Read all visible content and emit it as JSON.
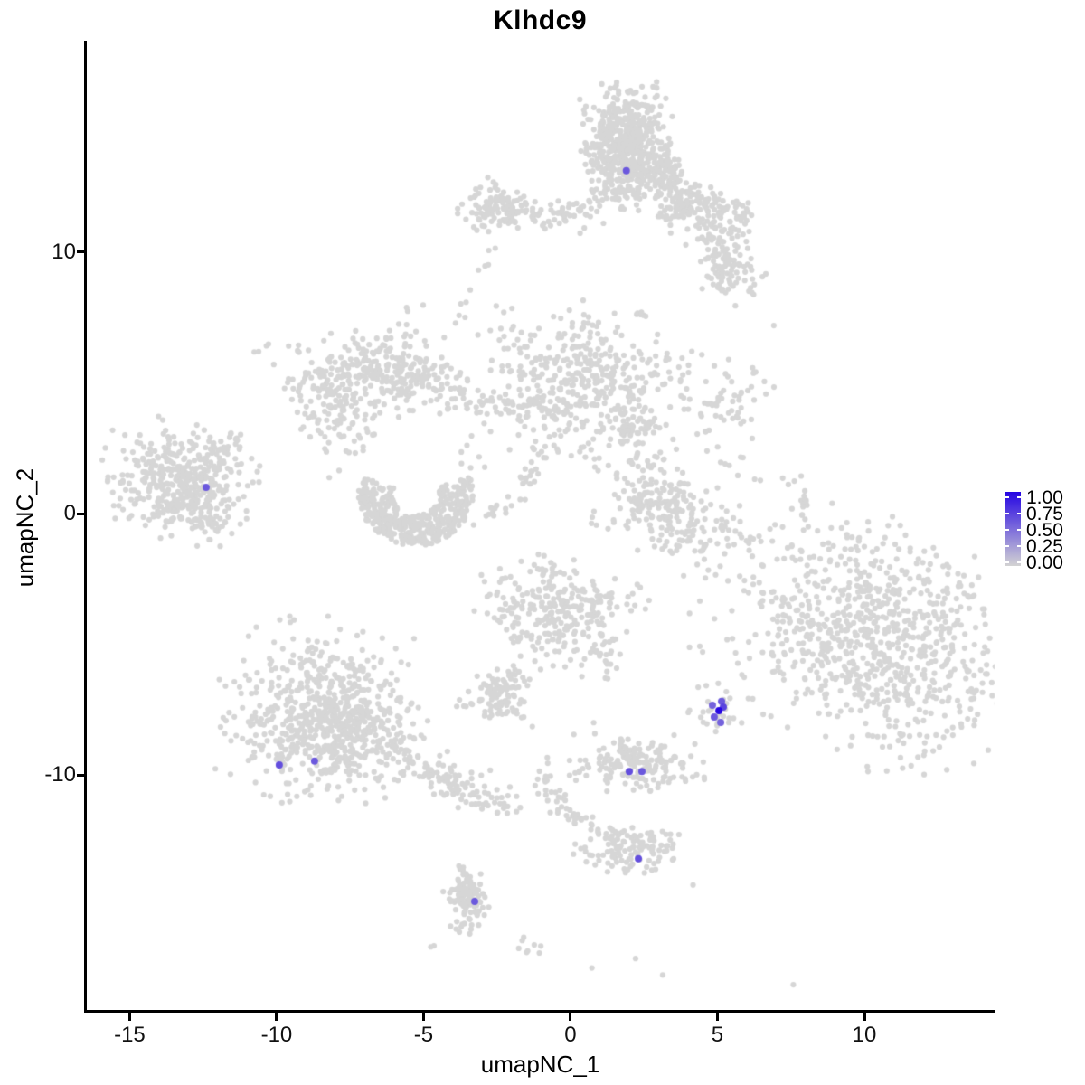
{
  "title": "Klhdc9",
  "chart_data": {
    "type": "scatter",
    "subtype": "umap-feature-plot",
    "title": "Klhdc9",
    "xlabel": "umapNC_1",
    "ylabel": "umapNC_2",
    "xlim": [
      -16.49,
      14.43
    ],
    "ylim": [
      -19.0,
      18.07
    ],
    "x_ticks": [
      -15,
      -10,
      -5,
      0,
      5,
      10
    ],
    "x_tick_labels": [
      "-15",
      "-10",
      "-5",
      "0",
      "5",
      "10"
    ],
    "y_ticks": [
      10,
      0,
      -10
    ],
    "y_tick_labels": [
      "10",
      "0",
      "-10"
    ],
    "grid": false,
    "base_point_color": "#D6D6D6",
    "base_point_radius": 3.1,
    "expressing_point_radius": 4.0,
    "legend": {
      "position": "right",
      "values": [
        1.0,
        0.75,
        0.5,
        0.25,
        0.0
      ],
      "labels": [
        "1.00",
        "0.75",
        "0.50",
        "0.25",
        "0.00"
      ],
      "color_low": "#D3D3D3",
      "color_high": "#2606E3"
    },
    "clusters": [
      {
        "shape": "gauss",
        "cx": 1.88,
        "cy": 14.02,
        "sx": 0.68,
        "sy": 1.04,
        "rot": 0,
        "n": 620
      },
      {
        "shape": "gauss",
        "cx": 3.2,
        "cy": 13.06,
        "sx": 0.35,
        "sy": 0.45,
        "rot": 0,
        "n": 70
      },
      {
        "shape": "gauss",
        "cx": 3.97,
        "cy": 11.74,
        "sx": 0.5,
        "sy": 0.45,
        "rot": 0,
        "n": 90
      },
      {
        "shape": "gauss",
        "cx": 5.2,
        "cy": 11.09,
        "sx": 0.55,
        "sy": 0.5,
        "rot": 0,
        "n": 90
      },
      {
        "shape": "gauss",
        "cx": 5.38,
        "cy": 9.26,
        "sx": 0.6,
        "sy": 0.5,
        "rot": -20,
        "n": 80
      },
      {
        "shape": "gauss",
        "cx": -2.43,
        "cy": 11.61,
        "sx": 0.6,
        "sy": 0.38,
        "rot": 0,
        "n": 110
      },
      {
        "shape": "gauss",
        "cx": -2.8,
        "cy": 12.54,
        "sx": 0.3,
        "sy": 0.25,
        "rot": 0,
        "n": 6
      },
      {
        "shape": "gauss",
        "cx": -8.09,
        "cy": 4.35,
        "sx": 0.72,
        "sy": 1.25,
        "rot": 20,
        "n": 170
      },
      {
        "shape": "gauss",
        "cx": -6.49,
        "cy": 5.56,
        "sx": 0.95,
        "sy": 0.6,
        "rot": 0,
        "n": 140
      },
      {
        "shape": "gauss",
        "cx": -5.14,
        "cy": 4.97,
        "sx": 0.8,
        "sy": 0.55,
        "rot": 0,
        "n": 100
      },
      {
        "shape": "gauss",
        "cx": -5.51,
        "cy": 7.12,
        "sx": 0.5,
        "sy": 0.6,
        "rot": 0,
        "n": 10
      },
      {
        "shape": "gauss",
        "cx": 0.37,
        "cy": 4.97,
        "sx": 1.7,
        "sy": 1.31,
        "rot": -10,
        "n": 430
      },
      {
        "shape": "gauss",
        "cx": 2.12,
        "cy": 3.38,
        "sx": 0.5,
        "sy": 0.4,
        "rot": 0,
        "n": 40
      },
      {
        "shape": "gauss",
        "cx": 3.42,
        "cy": 0.03,
        "sx": 1.35,
        "sy": 0.8,
        "rot": -35,
        "n": 240
      },
      {
        "shape": "gauss",
        "cx": 6.06,
        "cy": 1.49,
        "sx": 0.5,
        "sy": 0.45,
        "rot": 0,
        "n": 8
      },
      {
        "shape": "gauss",
        "cx": -13.38,
        "cy": 1.24,
        "sx": 1.15,
        "sy": 0.95,
        "rot": -15,
        "n": 430
      },
      {
        "shape": "gauss",
        "cx": -12.4,
        "cy": -0.17,
        "sx": 0.4,
        "sy": 0.3,
        "rot": 0,
        "n": 30
      },
      {
        "shape": "gauss",
        "cx": -10.62,
        "cy": 6.15,
        "sx": 0.1,
        "sy": 0.1,
        "rot": 0,
        "n": 2
      },
      {
        "shape": "gauss",
        "cx": -8.65,
        "cy": -7.6,
        "sx": 1.5,
        "sy": 1.55,
        "rot": 0,
        "n": 540
      },
      {
        "shape": "gauss",
        "cx": -7.17,
        "cy": -8.43,
        "sx": 1.0,
        "sy": 0.85,
        "rot": 0,
        "n": 200
      },
      {
        "shape": "gauss",
        "cx": -0.4,
        "cy": -3.8,
        "sx": 1.2,
        "sy": 0.95,
        "rot": -15,
        "n": 280
      },
      {
        "shape": "gauss",
        "cx": 2.12,
        "cy": -2.9,
        "sx": 0.15,
        "sy": 0.15,
        "rot": 0,
        "n": 3
      },
      {
        "shape": "gauss",
        "cx": -2.43,
        "cy": -6.98,
        "sx": 0.62,
        "sy": 0.5,
        "rot": 0,
        "n": 95
      },
      {
        "shape": "gauss",
        "cx": 2.18,
        "cy": -9.6,
        "sx": 1.05,
        "sy": 0.5,
        "rot": 0,
        "n": 165
      },
      {
        "shape": "gauss",
        "cx": 4.98,
        "cy": -7.53,
        "sx": 0.38,
        "sy": 0.5,
        "rot": 0,
        "n": 26
      },
      {
        "shape": "gauss",
        "cx": 4.03,
        "cy": -7.67,
        "sx": 0.1,
        "sy": 0.1,
        "rot": 0,
        "n": 2
      },
      {
        "shape": "gauss",
        "cx": 2.12,
        "cy": -12.85,
        "sx": 0.85,
        "sy": 0.5,
        "rot": 0,
        "n": 115
      },
      {
        "shape": "gauss",
        "cx": -3.45,
        "cy": -14.51,
        "sx": 0.28,
        "sy": 0.5,
        "rot": 0,
        "n": 40
      },
      {
        "shape": "gauss",
        "cx": -4.65,
        "cy": -16.51,
        "sx": 0.08,
        "sy": 0.08,
        "rot": 0,
        "n": 2
      },
      {
        "shape": "gauss",
        "cx": -1.97,
        "cy": -10.78,
        "sx": 0.18,
        "sy": 0.18,
        "rot": 0,
        "n": 3
      },
      {
        "shape": "gauss",
        "cx": 10.31,
        "cy": -4.77,
        "sx": 2.4,
        "sy": 1.9,
        "rot": -35,
        "n": 860
      },
      {
        "shape": "gauss",
        "cx": 6.92,
        "cy": 7.25,
        "sx": 0.05,
        "sy": 0.05,
        "rot": 0,
        "n": 1
      },
      {
        "shape": "gauss",
        "cx": 5.2,
        "cy": 4.01,
        "sx": 0.85,
        "sy": 0.9,
        "rot": 0,
        "n": 60
      },
      {
        "shape": "gauss",
        "cx": -3.42,
        "cy": 2.18,
        "sx": 0.35,
        "sy": 0.3,
        "rot": 0,
        "n": 6
      },
      {
        "shape": "gauss",
        "cx": 0.74,
        "cy": -17.27,
        "sx": 0.06,
        "sy": 0.06,
        "rot": 0,
        "n": 1
      },
      {
        "shape": "gauss",
        "cx": 2.12,
        "cy": -17.1,
        "sx": 0.06,
        "sy": 0.06,
        "rot": 0,
        "n": 1
      },
      {
        "shape": "gauss",
        "cx": 3.08,
        "cy": -17.65,
        "sx": 0.06,
        "sy": 0.06,
        "rot": 0,
        "n": 1
      },
      {
        "shape": "gauss",
        "cx": 7.54,
        "cy": -17.93,
        "sx": 0.06,
        "sy": 0.06,
        "rot": 0,
        "n": 1
      },
      {
        "shape": "gauss",
        "cx": 4.12,
        "cy": -14.16,
        "sx": 0.06,
        "sy": 0.06,
        "rot": 0,
        "n": 1
      },
      {
        "shape": "gauss",
        "cx": 0.83,
        "cy": -8.01,
        "sx": 0.06,
        "sy": 0.06,
        "rot": 0,
        "n": 1
      },
      {
        "shape": "gauss",
        "cx": -2.95,
        "cy": -2.49,
        "sx": 0.12,
        "sy": 0.12,
        "rot": 0,
        "n": 2
      },
      {
        "shape": "gauss",
        "cx": -2.55,
        "cy": -3.0,
        "sx": 0.12,
        "sy": 0.12,
        "rot": 0,
        "n": 2
      },
      {
        "shape": "strand",
        "x1": 3.14,
        "y1": 12.85,
        "x2": 4.12,
        "y2": 11.85,
        "jitter": 0.18,
        "n": 18
      },
      {
        "shape": "strand",
        "x1": 4.43,
        "y1": 10.57,
        "x2": 5.2,
        "y2": 9.78,
        "jitter": 0.15,
        "n": 14
      },
      {
        "shape": "strand",
        "x1": -1.11,
        "y1": 11.26,
        "x2": 0.83,
        "y2": 11.61,
        "jitter": 0.28,
        "n": 55
      },
      {
        "shape": "strand",
        "x1": 2.12,
        "y1": 7.81,
        "x2": 2.62,
        "y2": 7.12,
        "jitter": 0.12,
        "n": 6
      },
      {
        "shape": "strand",
        "x1": -2.55,
        "y1": 10.57,
        "x2": -4.28,
        "y2": 6.49,
        "jitter": 0.18,
        "n": 12
      },
      {
        "shape": "strand",
        "x1": -4.4,
        "y1": 4.49,
        "x2": -2.31,
        "y2": 4.01,
        "jitter": 0.28,
        "n": 30
      },
      {
        "shape": "strand",
        "x1": -1.88,
        "y1": 4.08,
        "x2": -0.65,
        "y2": 4.42,
        "jitter": 0.22,
        "n": 25
      },
      {
        "shape": "strand",
        "x1": -0.4,
        "y1": 3.25,
        "x2": -1.94,
        "y2": 0.41,
        "jitter": 0.2,
        "n": 30
      },
      {
        "shape": "strand",
        "x1": -2.18,
        "y1": 0.28,
        "x2": -3.35,
        "y2": -0.14,
        "jitter": 0.15,
        "n": 10
      },
      {
        "shape": "strand",
        "x1": 2.12,
        "y1": 3.66,
        "x2": 2.62,
        "y2": 1.07,
        "jitter": 0.15,
        "n": 12
      },
      {
        "shape": "strand",
        "x1": 7.91,
        "y1": 0.9,
        "x2": 8.09,
        "y2": -0.83,
        "jitter": 0.12,
        "n": 13
      },
      {
        "shape": "strand",
        "x1": -12.12,
        "y1": 2.07,
        "x2": -11.32,
        "y2": 2.94,
        "jitter": 0.16,
        "n": 22
      },
      {
        "shape": "strand",
        "x1": -5.94,
        "y1": -9.05,
        "x2": -3.05,
        "y2": -10.91,
        "jitter": 0.34,
        "n": 110
      },
      {
        "shape": "strand",
        "x1": -3.05,
        "y1": -10.91,
        "x2": -2.12,
        "y2": -11.3,
        "jitter": 0.2,
        "n": 20
      },
      {
        "shape": "strand",
        "x1": 0.83,
        "y1": -5.15,
        "x2": 1.45,
        "y2": -5.98,
        "jitter": 0.15,
        "n": 16
      },
      {
        "shape": "strand",
        "x1": -2.09,
        "y1": -6.36,
        "x2": -1.85,
        "y2": -5.73,
        "jitter": 0.1,
        "n": 9
      },
      {
        "shape": "strand",
        "x1": 1.88,
        "y1": -8.7,
        "x2": 2.03,
        "y2": -9.4,
        "jitter": 0.12,
        "n": 12
      },
      {
        "shape": "strand",
        "x1": 0.52,
        "y1": -11.68,
        "x2": 1.51,
        "y2": -12.5,
        "jitter": 0.15,
        "n": 14
      },
      {
        "shape": "strand",
        "x1": -3.6,
        "y1": -13.96,
        "x2": -3.48,
        "y2": -15.82,
        "jitter": 0.26,
        "n": 80
      },
      {
        "shape": "strand",
        "x1": -1.02,
        "y1": -9.74,
        "x2": 0.28,
        "y2": -12.09,
        "jitter": 0.26,
        "n": 40
      },
      {
        "shape": "strand",
        "x1": 3.72,
        "y1": 5.11,
        "x2": 4.34,
        "y2": 6.15,
        "jitter": 0.2,
        "n": 5
      },
      {
        "shape": "strand",
        "x1": -1.78,
        "y1": -16.44,
        "x2": -0.89,
        "y2": -16.65,
        "jitter": 0.15,
        "n": 8
      },
      {
        "shape": "arc",
        "cx": -5.26,
        "cy": 0.73,
        "r0": 0.8,
        "r1": 1.95,
        "a0": 160,
        "a1": 380,
        "n": 430
      }
    ],
    "expressing_cells": [
      {
        "x": 1.9,
        "y": 13.1,
        "value": 0.6
      },
      {
        "x": -12.4,
        "y": 1.0,
        "value": 0.6
      },
      {
        "x": -9.91,
        "y": -9.6,
        "value": 0.65
      },
      {
        "x": -8.71,
        "y": -9.46,
        "value": 0.6
      },
      {
        "x": 2.0,
        "y": -9.85,
        "value": 0.65
      },
      {
        "x": 2.43,
        "y": -9.85,
        "value": 0.6
      },
      {
        "x": 2.31,
        "y": -13.19,
        "value": 0.65
      },
      {
        "x": -3.26,
        "y": -14.82,
        "value": 0.6
      },
      {
        "x": 5.14,
        "y": -7.18,
        "value": 0.6
      },
      {
        "x": 4.83,
        "y": -7.32,
        "value": 0.55
      },
      {
        "x": 5.2,
        "y": -7.39,
        "value": 0.7
      },
      {
        "x": 5.05,
        "y": -7.53,
        "value": 1.0
      },
      {
        "x": 4.89,
        "y": -7.77,
        "value": 0.6
      },
      {
        "x": 5.11,
        "y": -7.98,
        "value": 0.55
      }
    ]
  }
}
